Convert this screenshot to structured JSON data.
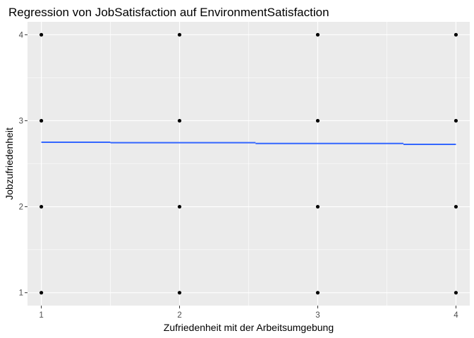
{
  "chart_data": {
    "type": "scatter",
    "title": "Regression von JobSatisfaction auf EnvironmentSatisfaction",
    "xlabel": "Zufriedenheit mit der Arbeitsumgebung",
    "ylabel": "Jobzufriedenheit",
    "xlim": [
      0.9,
      4.1
    ],
    "ylim": [
      0.85,
      4.15
    ],
    "x_ticks": [
      "1",
      "2",
      "3",
      "4"
    ],
    "y_ticks": [
      "1",
      "2",
      "3",
      "4"
    ],
    "grid": true,
    "legend": "none",
    "points": [
      {
        "x": 1,
        "y": 1
      },
      {
        "x": 1,
        "y": 2
      },
      {
        "x": 1,
        "y": 3
      },
      {
        "x": 1,
        "y": 4
      },
      {
        "x": 2,
        "y": 1
      },
      {
        "x": 2,
        "y": 2
      },
      {
        "x": 2,
        "y": 3
      },
      {
        "x": 2,
        "y": 4
      },
      {
        "x": 3,
        "y": 1
      },
      {
        "x": 3,
        "y": 2
      },
      {
        "x": 3,
        "y": 3
      },
      {
        "x": 3,
        "y": 4
      },
      {
        "x": 4,
        "y": 1
      },
      {
        "x": 4,
        "y": 2
      },
      {
        "x": 4,
        "y": 3
      },
      {
        "x": 4,
        "y": 4
      }
    ],
    "regression_line": {
      "segments": [
        {
          "x_start": 1.0,
          "x_end": 1.5,
          "y": 2.75
        },
        {
          "x_start": 1.5,
          "x_end": 2.55,
          "y": 2.745
        },
        {
          "x_start": 2.55,
          "x_end": 3.62,
          "y": 2.735
        },
        {
          "x_start": 3.62,
          "x_end": 4.0,
          "y": 2.725
        }
      ],
      "color": "#3366ff"
    },
    "colors": {
      "panel": "#ebebeb",
      "grid": "#ffffff",
      "points": "#000000"
    }
  }
}
